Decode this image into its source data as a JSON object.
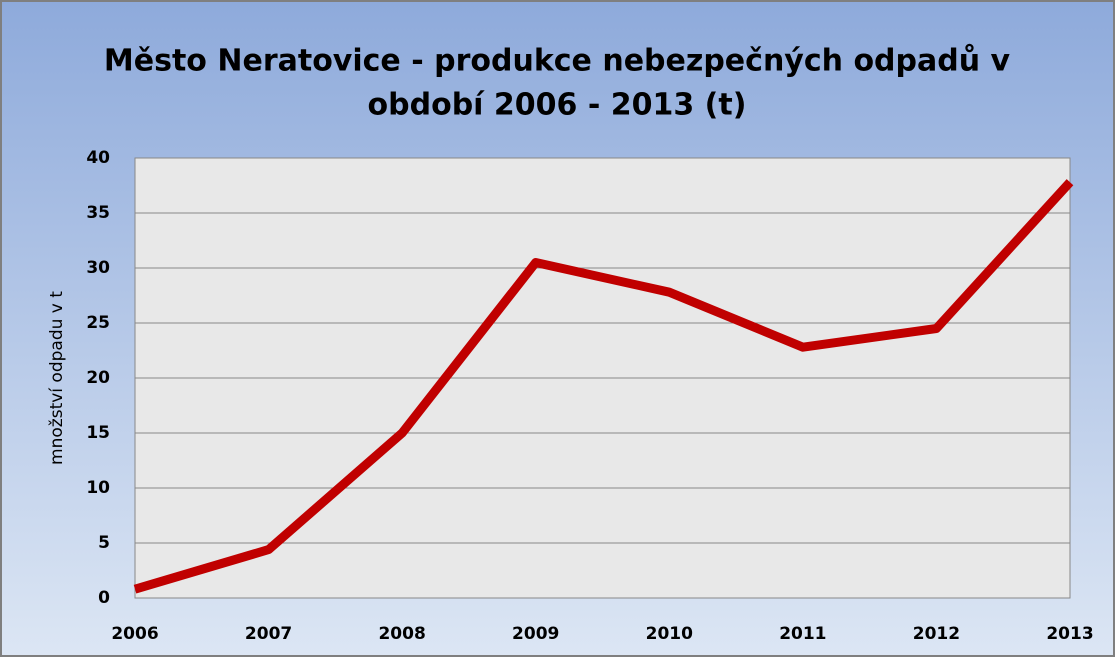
{
  "chart_data": {
    "type": "line",
    "title": [
      "Město Neratovice - produkce nebezpečných odpadů v",
      "období 2006 - 2013  (t)"
    ],
    "y_label": "množství odpadu v t",
    "categories": [
      "2006",
      "2007",
      "2008",
      "2009",
      "2010",
      "2011",
      "2012",
      "2013"
    ],
    "series": [
      {
        "color": "#c00000",
        "values": [
          0.8,
          4.4,
          15,
          30.5,
          27.8,
          22.8,
          24.5,
          37.8
        ]
      }
    ],
    "ylim": [
      0,
      40
    ],
    "yticks": [
      0,
      5,
      10,
      15,
      20,
      25,
      30,
      35,
      40
    ],
    "grid": true
  }
}
